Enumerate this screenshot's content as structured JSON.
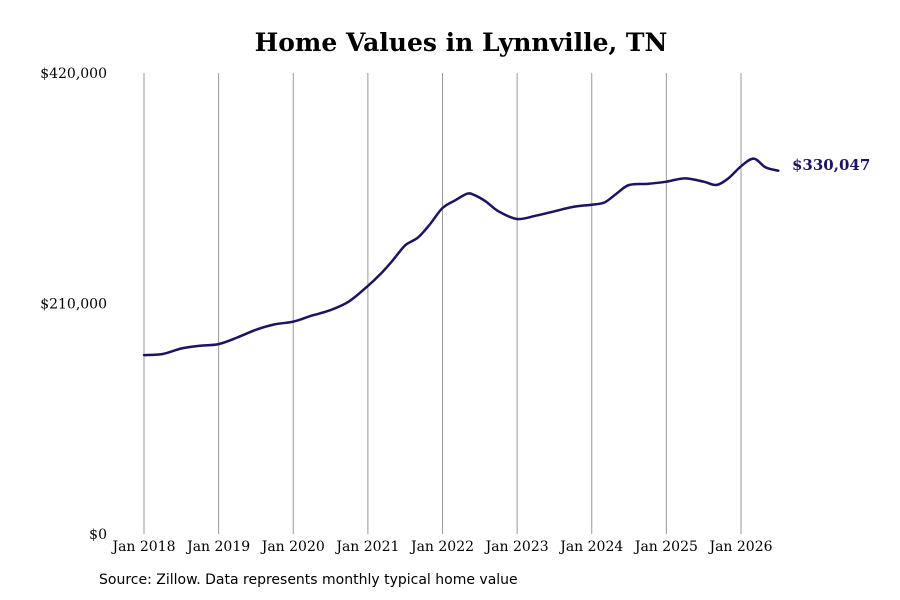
{
  "chart_data": {
    "type": "line",
    "title": "Home Values in Lynnville, TN",
    "xlabel": "",
    "ylabel": "",
    "ylim": [
      0,
      420000
    ],
    "y_ticks": [
      {
        "value": 0,
        "label": "$0"
      },
      {
        "value": 210000,
        "label": "$210,000"
      },
      {
        "value": 420000,
        "label": "$420,000"
      }
    ],
    "x_ticks": [
      {
        "value": 2018.0,
        "label": "Jan 2018"
      },
      {
        "value": 2019.0,
        "label": "Jan 2019"
      },
      {
        "value": 2020.0,
        "label": "Jan 2020"
      },
      {
        "value": 2021.0,
        "label": "Jan 2021"
      },
      {
        "value": 2022.0,
        "label": "Jan 2022"
      },
      {
        "value": 2023.0,
        "label": "Jan 2023"
      },
      {
        "value": 2024.0,
        "label": "Jan 2024"
      },
      {
        "value": 2025.0,
        "label": "Jan 2025"
      },
      {
        "value": 2026.0,
        "label": "Jan 2026"
      }
    ],
    "xlim": [
      2018.0,
      2026.5
    ],
    "grid": "vertical",
    "series": [
      {
        "color": "#1b1464",
        "x": [
          2018.0,
          2018.25,
          2018.5,
          2018.75,
          2019.0,
          2019.25,
          2019.5,
          2019.75,
          2020.0,
          2020.25,
          2020.5,
          2020.75,
          2021.0,
          2021.17,
          2021.33,
          2021.5,
          2021.67,
          2021.83,
          2022.0,
          2022.17,
          2022.33,
          2022.42,
          2022.58,
          2022.75,
          2023.0,
          2023.25,
          2023.5,
          2023.75,
          2024.0,
          2024.17,
          2024.33,
          2024.5,
          2024.75,
          2025.0,
          2025.25,
          2025.5,
          2025.67,
          2025.83,
          2026.0,
          2026.17,
          2026.33,
          2026.5
        ],
        "values": [
          163000,
          164000,
          169000,
          171500,
          173000,
          179000,
          186000,
          191000,
          193500,
          199000,
          204000,
          212000,
          226000,
          237000,
          249000,
          263000,
          270000,
          282000,
          297000,
          304000,
          310000,
          309000,
          303000,
          294000,
          287000,
          290000,
          294000,
          298000,
          300000,
          302000,
          310000,
          318000,
          319000,
          321000,
          324000,
          321000,
          318000,
          324000,
          335000,
          342000,
          334000,
          331000
        ]
      }
    ],
    "end_label": "$330,047"
  },
  "footer": {
    "source": "Source: Zillow. Data represents monthly typical home value"
  }
}
